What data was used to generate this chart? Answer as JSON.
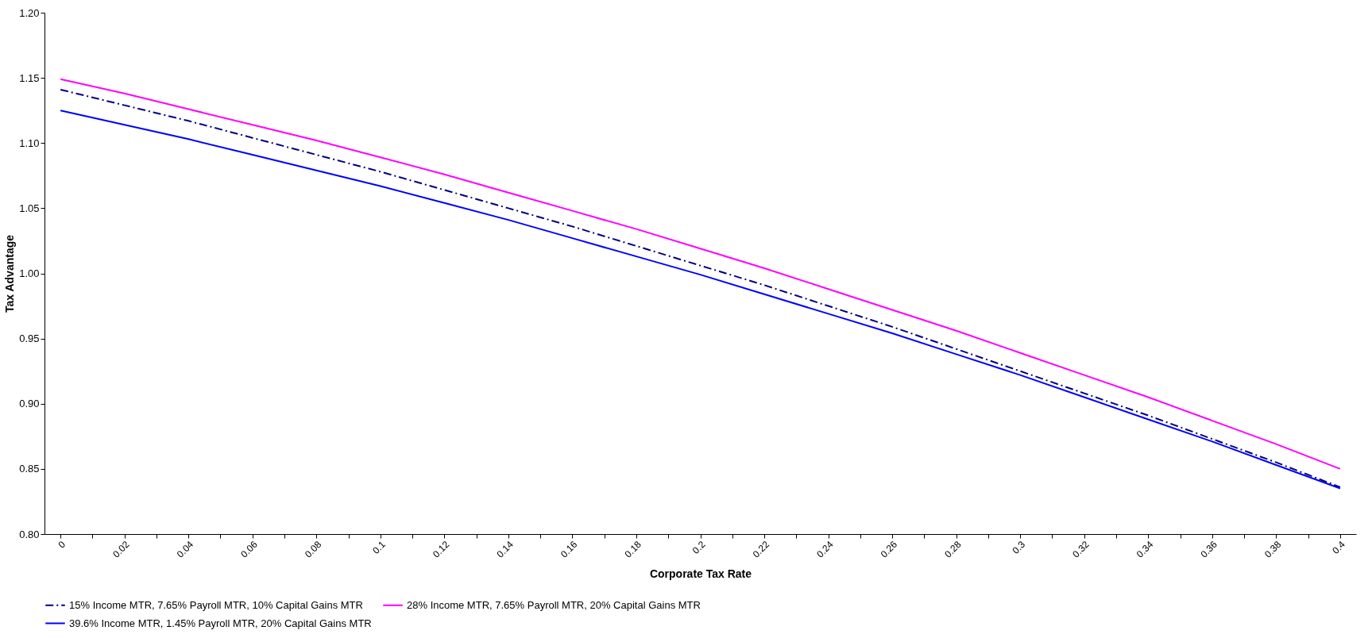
{
  "chart_data": {
    "type": "line",
    "xlabel": "Corporate Tax Rate",
    "ylabel": "Tax Advantage",
    "x": [
      0,
      0.02,
      0.04,
      0.06,
      0.08,
      0.1,
      0.12,
      0.14,
      0.16,
      0.18,
      0.2,
      0.22,
      0.24,
      0.26,
      0.28,
      0.3,
      0.32,
      0.34,
      0.36,
      0.38,
      0.4
    ],
    "series": [
      {
        "name": "15% Income MTR, 7.65% Payroll MTR, 10% Capital Gains MTR",
        "color": "#000080",
        "line_style": "dashed",
        "values": [
          1.141,
          1.129,
          1.117,
          1.104,
          1.091,
          1.078,
          1.064,
          1.05,
          1.036,
          1.021,
          1.006,
          0.991,
          0.975,
          0.959,
          0.942,
          0.925,
          0.908,
          0.891,
          0.873,
          0.855,
          0.836
        ]
      },
      {
        "name": "28% Income MTR, 7.65% Payroll MTR, 20% Capital Gains MTR",
        "color": "#ff00ff",
        "line_style": "solid",
        "values": [
          1.149,
          1.138,
          1.126,
          1.114,
          1.102,
          1.089,
          1.076,
          1.062,
          1.048,
          1.034,
          1.019,
          1.004,
          0.988,
          0.972,
          0.956,
          0.939,
          0.922,
          0.905,
          0.887,
          0.869,
          0.85
        ]
      },
      {
        "name": "39.6% Income MTR, 1.45% Payroll MTR, 20% Capital Gains MTR",
        "color": "#0000ff",
        "line_style": "solid",
        "values": [
          1.125,
          1.114,
          1.103,
          1.091,
          1.079,
          1.067,
          1.054,
          1.041,
          1.027,
          1.013,
          0.999,
          0.984,
          0.969,
          0.954,
          0.938,
          0.922,
          0.905,
          0.888,
          0.871,
          0.853,
          0.835
        ]
      }
    ],
    "xlim": [
      -0.005,
      0.405
    ],
    "xticks": [
      0,
      {
        "value": 0.01,
        "label": null
      },
      0.02,
      {
        "value": 0.03,
        "label": null
      },
      0.04,
      {
        "value": 0.05,
        "label": null
      },
      0.06,
      {
        "value": 0.07,
        "label": null
      },
      0.08,
      {
        "value": 0.09,
        "label": null
      },
      0.1,
      {
        "value": 0.11,
        "label": null
      },
      0.12,
      {
        "value": 0.13,
        "label": null
      },
      0.14,
      {
        "value": 0.15,
        "label": null
      },
      0.16,
      {
        "value": 0.17,
        "label": null
      },
      0.18,
      {
        "value": 0.19,
        "label": null
      },
      0.2,
      {
        "value": 0.21,
        "label": null
      },
      0.22,
      {
        "value": 0.23,
        "label": null
      },
      0.24,
      {
        "value": 0.25,
        "label": null
      },
      0.26,
      {
        "value": 0.27,
        "label": null
      },
      0.28,
      {
        "value": 0.29,
        "label": null
      },
      0.3,
      {
        "value": 0.31,
        "label": null
      },
      0.32,
      {
        "value": 0.33,
        "label": null
      },
      0.34,
      {
        "value": 0.35,
        "label": null
      },
      0.36,
      {
        "value": 0.37,
        "label": null
      },
      0.38,
      {
        "value": 0.39,
        "label": null
      },
      0.4
    ],
    "ylim": [
      0.8,
      1.2
    ],
    "yticks": [
      {
        "value": 0.8,
        "label": "0.80"
      },
      {
        "value": 0.85,
        "label": "0.85"
      },
      {
        "value": 0.9,
        "label": "0.90"
      },
      {
        "value": 0.95,
        "label": "0.95"
      },
      {
        "value": 1.0,
        "label": "1.00"
      },
      {
        "value": 1.05,
        "label": "1.05"
      },
      {
        "value": 1.1,
        "label": "1.10"
      },
      {
        "value": 1.15,
        "label": "1.15"
      },
      {
        "value": 1.2,
        "label": "1.20"
      }
    ],
    "grid": false,
    "legend": "bottom",
    "marker": "none"
  }
}
